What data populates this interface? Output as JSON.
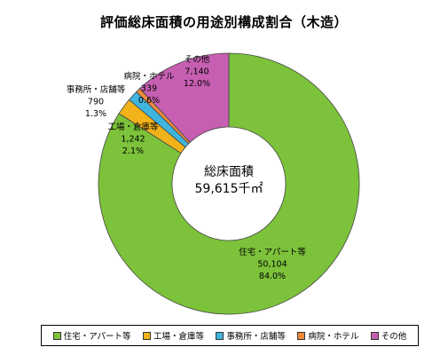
{
  "title": "評価総床面積の用途別構成割合（木造）",
  "center": {
    "label": "総床面積",
    "value": "59,615千㎡"
  },
  "chart_data": {
    "type": "pie",
    "title": "評価総床面積の用途別構成割合（木造）",
    "total_label": "総床面積 59,615千㎡",
    "slices": [
      {
        "name": "住宅・アパート等",
        "value": 50104,
        "value_label": "50,104",
        "percent": 84.0,
        "percent_label": "84.0%",
        "color": "#7cc23a"
      },
      {
        "name": "工場・倉庫等",
        "value": 1242,
        "value_label": "1,242",
        "percent": 2.1,
        "percent_label": "2.1%",
        "color": "#f2b21a"
      },
      {
        "name": "事務所・店舗等",
        "value": 790,
        "value_label": "790",
        "percent": 1.3,
        "percent_label": "1.3%",
        "color": "#3fb4dd"
      },
      {
        "name": "病院・ホテル",
        "value": 339,
        "value_label": "339",
        "percent": 0.6,
        "percent_label": "0.6%",
        "color": "#f08a3a"
      },
      {
        "name": "その他",
        "value": 7140,
        "value_label": "7,140",
        "percent": 12.0,
        "percent_label": "12.0%",
        "color": "#c65fb1"
      }
    ],
    "legend_position": "bottom"
  }
}
